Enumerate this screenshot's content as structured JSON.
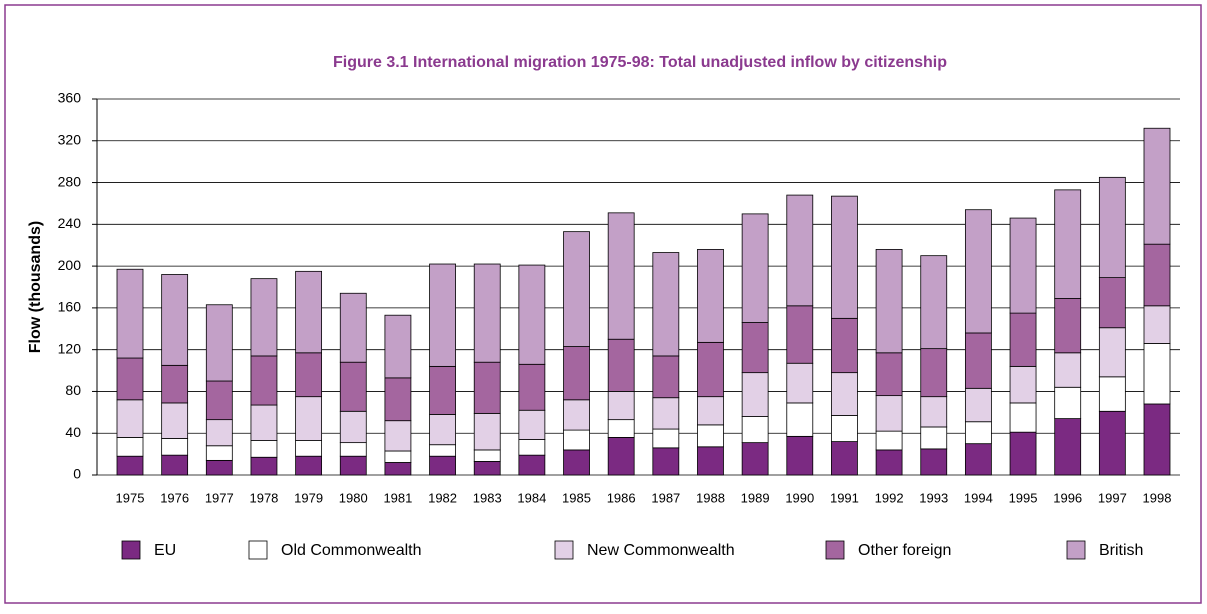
{
  "chart_data": {
    "type": "stacked_bar",
    "title": "Figure 3.1 International migration 1975-98: Total unadjusted inflow by citizenship",
    "y_label": "Flow (thousands)",
    "categories": [
      "1975",
      "1976",
      "1977",
      "1978",
      "1979",
      "1980",
      "1981",
      "1982",
      "1983",
      "1984",
      "1985",
      "1986",
      "1987",
      "1988",
      "1989",
      "1990",
      "1991",
      "1992",
      "1993",
      "1994",
      "1995",
      "1996",
      "1997",
      "1998"
    ],
    "series": [
      {
        "name": "EU",
        "color": "#7b2a82",
        "values": [
          18,
          19,
          14,
          17,
          18,
          18,
          12,
          18,
          13,
          19,
          24,
          36,
          26,
          27,
          31,
          37,
          32,
          24,
          25,
          30,
          41,
          54,
          61,
          68
        ]
      },
      {
        "name": "Old Commonwealth",
        "color": "#ffffff",
        "values": [
          18,
          16,
          14,
          16,
          15,
          13,
          11,
          11,
          11,
          15,
          19,
          17,
          18,
          21,
          25,
          32,
          25,
          18,
          21,
          21,
          28,
          30,
          33,
          58
        ]
      },
      {
        "name": "New Commonwealth",
        "color": "#e2d0e6",
        "values": [
          36,
          34,
          25,
          34,
          42,
          30,
          29,
          29,
          35,
          28,
          29,
          27,
          30,
          27,
          42,
          38,
          41,
          34,
          29,
          32,
          35,
          33,
          47,
          36
        ]
      },
      {
        "name": "Other foreign",
        "color": "#a4669f",
        "values": [
          40,
          36,
          37,
          47,
          42,
          47,
          41,
          46,
          49,
          44,
          51,
          50,
          40,
          52,
          48,
          55,
          52,
          41,
          46,
          53,
          51,
          52,
          48,
          59
        ]
      },
      {
        "name": "British",
        "color": "#c3a0c7",
        "values": [
          85,
          87,
          73,
          74,
          78,
          66,
          60,
          98,
          94,
          95,
          110,
          121,
          99,
          89,
          104,
          106,
          117,
          99,
          89,
          118,
          91,
          104,
          96,
          111
        ]
      }
    ],
    "ylim": [
      0,
      360
    ],
    "yticks": [
      0,
      40,
      80,
      120,
      160,
      200,
      240,
      280,
      320,
      360
    ],
    "grid": true
  }
}
